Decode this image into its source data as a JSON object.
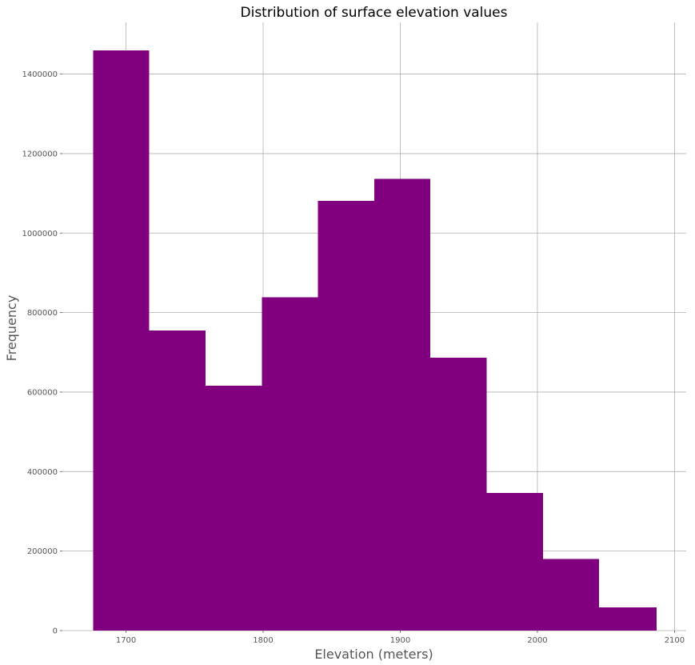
{
  "chart_data": {
    "type": "bar",
    "title": "Distribution of surface elevation values",
    "xlabel": "Elevation (meters)",
    "ylabel": "Frequency",
    "bins": [
      {
        "x0": 1676,
        "x1": 1717,
        "value": 1460000
      },
      {
        "x0": 1717,
        "x1": 1758,
        "value": 755000
      },
      {
        "x0": 1758,
        "x1": 1799,
        "value": 616000
      },
      {
        "x0": 1799,
        "x1": 1840,
        "value": 838000
      },
      {
        "x0": 1840,
        "x1": 1881,
        "value": 1081000
      },
      {
        "x0": 1881,
        "x1": 1922,
        "value": 1136000
      },
      {
        "x0": 1922,
        "x1": 1963,
        "value": 686000
      },
      {
        "x0": 1963,
        "x1": 2004,
        "value": 346000
      },
      {
        "x0": 2004,
        "x1": 2045,
        "value": 180000
      },
      {
        "x0": 2045,
        "x1": 2087,
        "value": 58000
      }
    ],
    "xticks": [
      1700,
      1800,
      1900,
      2000,
      2100
    ],
    "xtick_labels": [
      "1700",
      "1800",
      "1900",
      "2000",
      "2100"
    ],
    "yticks": [
      0,
      200000,
      400000,
      600000,
      800000,
      1000000,
      1200000,
      1400000
    ],
    "ytick_labels": [
      "0",
      "200000",
      "400000",
      "600000",
      "800000",
      "1000000",
      "1200000",
      "1400000"
    ],
    "xlim": [
      1653.6,
      2108.5
    ],
    "ylim": [
      0,
      1530000
    ],
    "bar_color": "#800080",
    "grid": true
  }
}
